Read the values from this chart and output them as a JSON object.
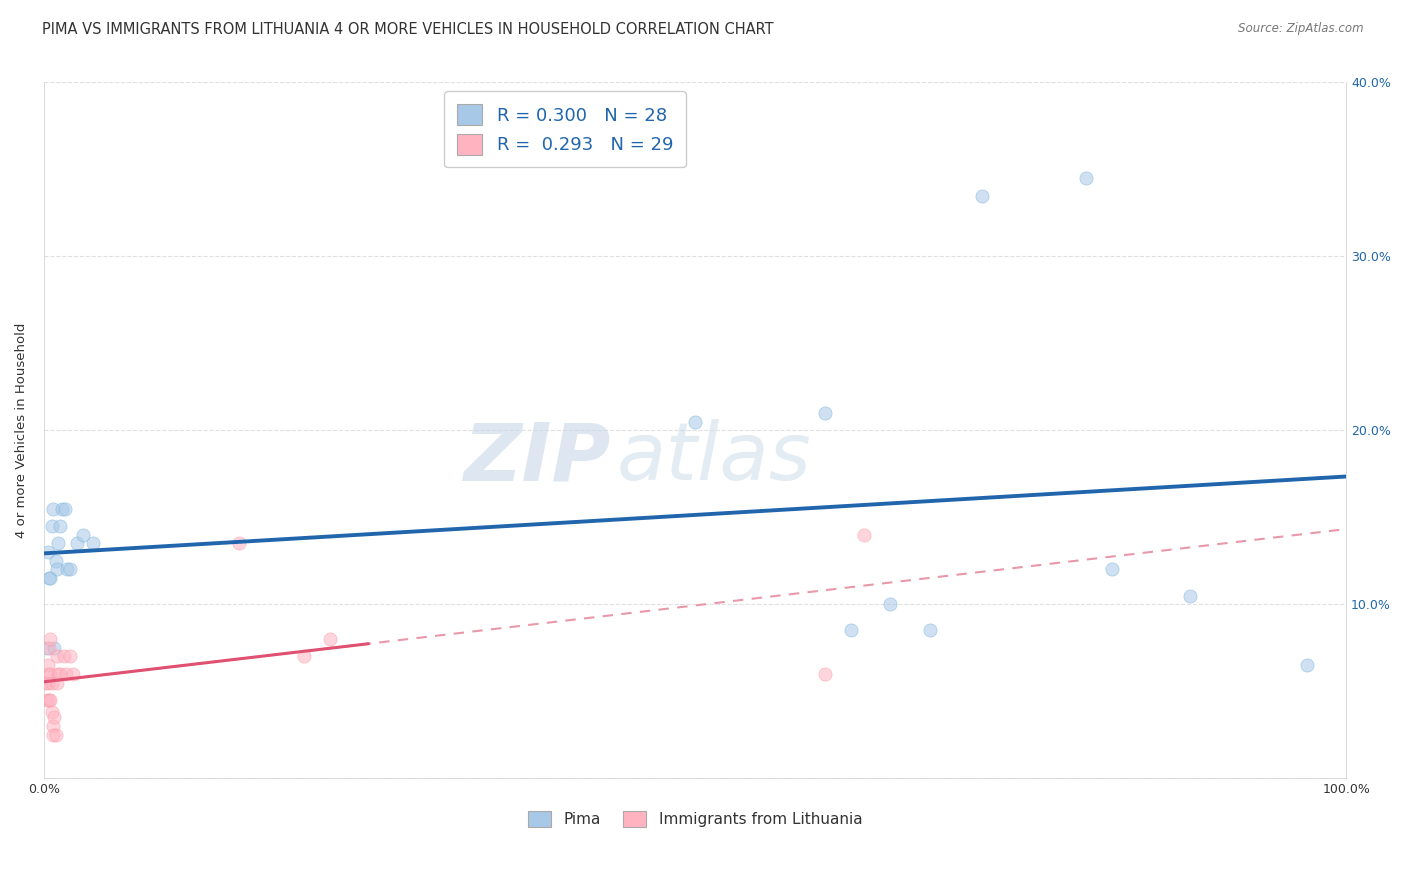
{
  "title": "PIMA VS IMMIGRANTS FROM LITHUANIA 4 OR MORE VEHICLES IN HOUSEHOLD CORRELATION CHART",
  "source": "Source: ZipAtlas.com",
  "xlabel": "",
  "ylabel": "4 or more Vehicles in Household",
  "xlim": [
    0,
    1.0
  ],
  "ylim": [
    0,
    0.4
  ],
  "xticks": [
    0.0,
    0.1,
    0.2,
    0.3,
    0.4,
    0.5,
    0.6,
    0.7,
    0.8,
    0.9,
    1.0
  ],
  "xticklabels": [
    "0.0%",
    "",
    "",
    "",
    "",
    "",
    "",
    "",
    "",
    "",
    "100.0%"
  ],
  "yticklabels_right": [
    "",
    "10.0%",
    "20.0%",
    "30.0%",
    "40.0%"
  ],
  "pima_color": "#a8c8e8",
  "pima_edge_color": "#6baed6",
  "lithuania_color": "#ffb3c1",
  "lithuania_edge_color": "#fc8d9b",
  "pima_line_color": "#2166ac",
  "lithuania_line_color": "#e05070",
  "lithuania_dash_color": "#e898a8",
  "pima_R": 0.3,
  "pima_N": 28,
  "lithuania_R": 0.293,
  "lithuania_N": 29,
  "legend_label_pima": "Pima",
  "legend_label_lithuania": "Immigrants from Lithuania",
  "watermark_zip": "ZIP",
  "watermark_atlas": "atlas",
  "pima_x": [
    0.002,
    0.003,
    0.004,
    0.005,
    0.006,
    0.007,
    0.008,
    0.009,
    0.01,
    0.011,
    0.012,
    0.014,
    0.016,
    0.018,
    0.02,
    0.025,
    0.03,
    0.038,
    0.5,
    0.6,
    0.62,
    0.65,
    0.68,
    0.72,
    0.8,
    0.82,
    0.88,
    0.97
  ],
  "pima_y": [
    0.075,
    0.13,
    0.115,
    0.115,
    0.145,
    0.155,
    0.075,
    0.125,
    0.12,
    0.135,
    0.145,
    0.155,
    0.155,
    0.12,
    0.12,
    0.135,
    0.14,
    0.135,
    0.205,
    0.21,
    0.085,
    0.1,
    0.085,
    0.335,
    0.345,
    0.12,
    0.105,
    0.065
  ],
  "lithuania_x": [
    0.001,
    0.002,
    0.002,
    0.003,
    0.003,
    0.004,
    0.004,
    0.005,
    0.005,
    0.005,
    0.006,
    0.006,
    0.007,
    0.007,
    0.008,
    0.009,
    0.01,
    0.01,
    0.011,
    0.012,
    0.015,
    0.017,
    0.02,
    0.022,
    0.15,
    0.2,
    0.22,
    0.6,
    0.63
  ],
  "lithuania_y": [
    0.055,
    0.06,
    0.045,
    0.065,
    0.055,
    0.075,
    0.045,
    0.08,
    0.06,
    0.045,
    0.055,
    0.038,
    0.03,
    0.025,
    0.035,
    0.025,
    0.07,
    0.055,
    0.06,
    0.06,
    0.07,
    0.06,
    0.07,
    0.06,
    0.135,
    0.07,
    0.08,
    0.06,
    0.14
  ],
  "background_color": "#ffffff",
  "grid_color": "#e0e0e0",
  "title_fontsize": 10.5,
  "axis_fontsize": 9.5,
  "tick_fontsize": 9,
  "marker_size": 90,
  "marker_alpha": 0.55
}
